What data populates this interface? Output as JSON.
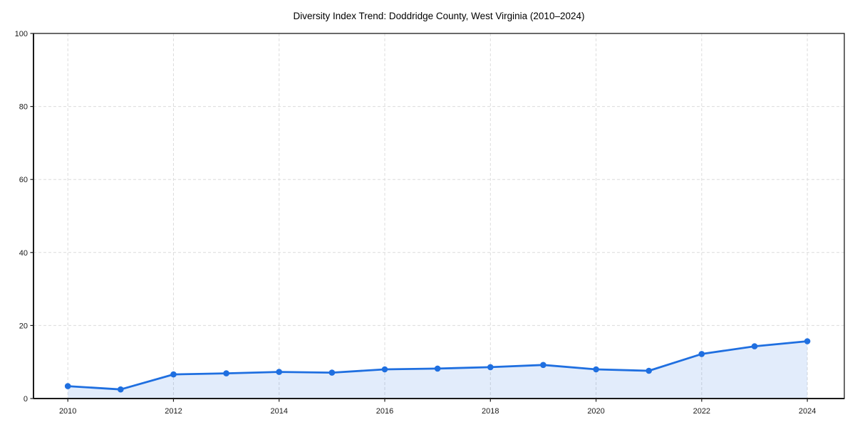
{
  "title": "Diversity Index Trend: Doddridge County, West Virginia (2010–2024)",
  "chart_data": {
    "type": "area",
    "title": "Diversity Index Trend: Doddridge County, West Virginia (2010–2024)",
    "series_name": "Diversity Index",
    "x": [
      2010,
      2011,
      2012,
      2013,
      2014,
      2015,
      2016,
      2017,
      2018,
      2019,
      2020,
      2021,
      2022,
      2023,
      2024
    ],
    "values": [
      3.4,
      2.5,
      6.6,
      6.9,
      7.3,
      7.1,
      8.0,
      8.2,
      8.6,
      9.2,
      8.0,
      7.6,
      12.2,
      14.3,
      15.7
    ],
    "xlabel": "",
    "ylabel": "",
    "xlim": [
      2009.35,
      2024.7
    ],
    "ylim": [
      0,
      100
    ],
    "xticks": [
      2010,
      2012,
      2014,
      2016,
      2018,
      2020,
      2022,
      2024
    ],
    "yticks": [
      0,
      20,
      40,
      60,
      80,
      100
    ],
    "grid": true,
    "grid_style": "dashed",
    "legend": "none",
    "marker": "circle"
  },
  "colors": {
    "line": "#1f6fe0",
    "fill": "#1f6fe0",
    "fill_opacity": 0.13,
    "grid": "#dcdcdc",
    "axis": "#1a1a1a",
    "text": "#1a1a1a",
    "background": "#ffffff"
  }
}
